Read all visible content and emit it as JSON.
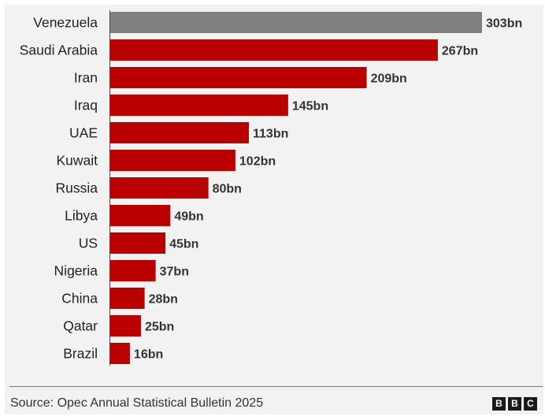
{
  "chart_data": {
    "type": "bar",
    "orientation": "horizontal",
    "categories": [
      "Venezuela",
      "Saudi Arabia",
      "Iran",
      "Iraq",
      "UAE",
      "Kuwait",
      "Russia",
      "Libya",
      "US",
      "Nigeria",
      "China",
      "Qatar",
      "Brazil"
    ],
    "values": [
      303,
      267,
      209,
      145,
      113,
      102,
      80,
      49,
      45,
      37,
      28,
      25,
      16
    ],
    "value_labels": [
      "303bn",
      "267bn",
      "209bn",
      "145bn",
      "113bn",
      "102bn",
      "80bn",
      "49bn",
      "45bn",
      "37bn",
      "28bn",
      "25bn",
      "16bn"
    ],
    "highlight_index": 0,
    "highlight_color": "#808080",
    "bar_color": "#bb0000",
    "xlim": [
      0,
      303
    ],
    "grid": false
  },
  "footer": {
    "source": "Source: Opec Annual Statistical Bulletin 2025",
    "logo": [
      "B",
      "B",
      "C"
    ]
  }
}
